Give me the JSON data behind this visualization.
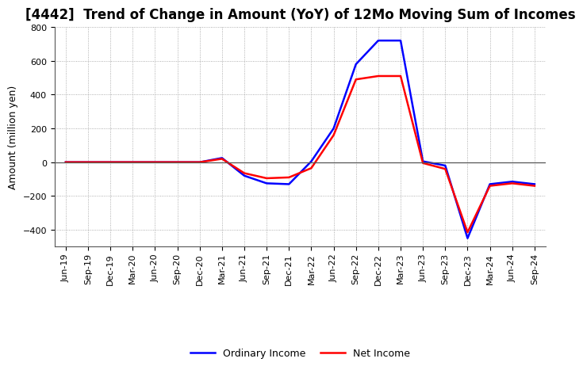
{
  "title": "[4442]  Trend of Change in Amount (YoY) of 12Mo Moving Sum of Incomes",
  "ylabel": "Amount (million yen)",
  "x_labels": [
    "Jun-19",
    "Sep-19",
    "Dec-19",
    "Mar-20",
    "Jun-20",
    "Sep-20",
    "Dec-20",
    "Mar-21",
    "Jun-21",
    "Sep-21",
    "Dec-21",
    "Mar-22",
    "Jun-22",
    "Sep-22",
    "Dec-22",
    "Mar-23",
    "Jun-23",
    "Sep-23",
    "Dec-23",
    "Mar-24",
    "Jun-24",
    "Sep-24"
  ],
  "ordinary_income": [
    0,
    0,
    0,
    0,
    0,
    0,
    0,
    25,
    -80,
    -125,
    -130,
    5,
    200,
    580,
    720,
    720,
    5,
    -20,
    -450,
    -130,
    -115,
    -130
  ],
  "net_income": [
    0,
    0,
    0,
    0,
    0,
    0,
    0,
    20,
    -65,
    -95,
    -90,
    -35,
    160,
    490,
    510,
    510,
    -5,
    -40,
    -415,
    -140,
    -125,
    -140
  ],
  "ordinary_color": "#0000FF",
  "net_color": "#FF0000",
  "background_color": "#FFFFFF",
  "grid_color": "#999999",
  "ylim": [
    -500,
    800
  ],
  "yticks": [
    -400,
    -200,
    0,
    200,
    400,
    600,
    800
  ],
  "title_fontsize": 12,
  "axis_fontsize": 9,
  "tick_fontsize": 8,
  "legend_fontsize": 9,
  "line_width": 1.8
}
